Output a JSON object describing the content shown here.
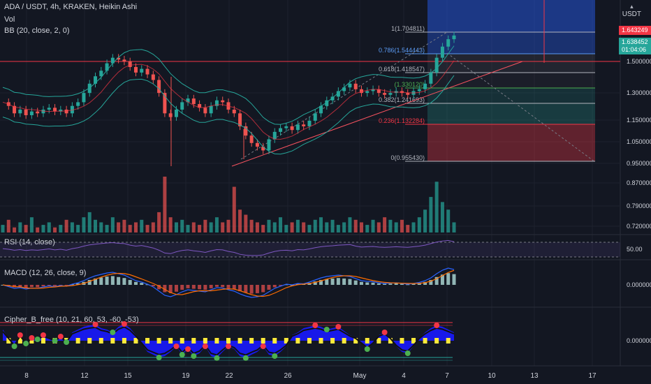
{
  "header": {
    "title": "ADA / USDT, 4h, KRAKEN, Heikin Ashi",
    "vol_label": "Vol",
    "bb_label": "BB (20, close, 2, 0)",
    "rsi_label": "RSI (14, close)",
    "macd_label": "MACD (12, 26, close, 9)",
    "cipher_label": "Cipher_B_free (10, 21, 60, 53, -60, -53)",
    "unit": "USDT"
  },
  "price_boxes": {
    "red_price": "1.643249",
    "green_price": "1.638452",
    "countdown": "01:04:06"
  },
  "colors": {
    "background": "#131722",
    "up": "#26a69a",
    "down": "#ef5350",
    "grid": "#1e222d",
    "axis_text": "#d1d4dc",
    "fib_blue": "#2962ff",
    "cipher_blue": "#1a1aff",
    "cipher_yellow": "#ffeb3b"
  },
  "chart_data": [
    {
      "type": "candlestick",
      "title": "ADA / USDT, 4h, KRAKEN, Heikin Ashi",
      "x_ticks": [
        "8",
        "12",
        "15",
        "19",
        "22",
        "26",
        "May",
        "4",
        "7",
        "10",
        "13",
        "17"
      ],
      "y_ticks": [
        1.5,
        1.3,
        1.15,
        1.05,
        0.95,
        0.87,
        0.79,
        0.72
      ],
      "y_tick_labels": [
        "1.500000",
        "1.300000",
        "1.150000",
        "1.050000",
        "0.950000",
        "0.870000",
        "0.790000",
        "0.720000"
      ],
      "fib_levels": [
        {
          "ratio": "1",
          "value": 1.704811,
          "label": "1(1.704811)",
          "color": "#b2b5be"
        },
        {
          "ratio": "0.786",
          "value": 1.544443,
          "label": "0.786(1.544443)",
          "color": "#5b9cf6"
        },
        {
          "ratio": "0.618",
          "value": 1.418547,
          "label": "0.618(1.418547)",
          "color": "#b2b5be"
        },
        {
          "ratio": "0.5",
          "value": 1.33012,
          "label": "(1.330120)",
          "color": "#4caf50"
        },
        {
          "ratio": "0.382",
          "value": 1.241693,
          "label": "0.382(1.241693)",
          "color": "#b2b5be"
        },
        {
          "ratio": "0.236",
          "value": 1.132284,
          "label": "0.236(1.132284)",
          "color": "#f23645"
        },
        {
          "ratio": "0",
          "value": 0.95543,
          "label": "0(0.955430)",
          "color": "#b2b5be"
        }
      ],
      "horizontal_resistance": 1.5,
      "price_series": [
        1.28,
        1.26,
        1.22,
        1.24,
        1.21,
        1.23,
        1.22,
        1.24,
        1.25,
        1.23,
        1.24,
        1.22,
        1.26,
        1.28,
        1.33,
        1.38,
        1.42,
        1.45,
        1.49,
        1.52,
        1.51,
        1.5,
        1.47,
        1.44,
        1.46,
        1.43,
        1.4,
        1.33,
        1.22,
        1.2,
        1.24,
        1.28,
        1.3,
        1.27,
        1.25,
        1.22,
        1.26,
        1.29,
        1.28,
        1.24,
        1.22,
        1.15,
        1.1,
        1.06,
        1.04,
        1.02,
        1.08,
        1.12,
        1.14,
        1.15,
        1.13,
        1.16,
        1.15,
        1.18,
        1.22,
        1.26,
        1.29,
        1.31,
        1.34,
        1.36,
        1.38,
        1.35,
        1.33,
        1.34,
        1.35,
        1.33,
        1.32,
        1.33,
        1.34,
        1.33,
        1.32,
        1.34,
        1.35,
        1.38,
        1.44,
        1.52,
        1.58,
        1.62,
        1.64
      ]
    },
    {
      "type": "bar",
      "title": "Vol",
      "values": [
        3,
        5,
        2,
        4,
        3,
        6,
        2,
        3,
        4,
        2,
        3,
        5,
        4,
        3,
        6,
        8,
        5,
        4,
        3,
        6,
        4,
        5,
        3,
        4,
        5,
        3,
        4,
        8,
        22,
        6,
        4,
        5,
        3,
        4,
        3,
        5,
        4,
        6,
        4,
        5,
        18,
        9,
        7,
        5,
        4,
        3,
        5,
        4,
        6,
        3,
        4,
        5,
        4,
        3,
        5,
        6,
        4,
        5,
        3,
        4,
        6,
        5,
        4,
        3,
        5,
        4,
        6,
        5,
        4,
        5,
        3,
        4,
        6,
        9,
        14,
        20,
        12,
        9,
        4
      ]
    },
    {
      "type": "line",
      "title": "RSI (14, close)",
      "y_tick_labels": [
        "50.00"
      ],
      "values": [
        52,
        50,
        47,
        49,
        46,
        48,
        47,
        49,
        51,
        48,
        50,
        47,
        52,
        55,
        60,
        64,
        66,
        68,
        70,
        71,
        69,
        68,
        63,
        60,
        62,
        58,
        54,
        47,
        38,
        36,
        42,
        46,
        48,
        45,
        43,
        40,
        45,
        49,
        48,
        43,
        40,
        34,
        31,
        30,
        30,
        32,
        38,
        43,
        46,
        47,
        45,
        49,
        48,
        51,
        55,
        58,
        60,
        61,
        63,
        64,
        65,
        60,
        57,
        58,
        59,
        57,
        56,
        57,
        58,
        57,
        56,
        58,
        60,
        63,
        68,
        73,
        76,
        78,
        74
      ]
    },
    {
      "type": "bar",
      "title": "MACD (12, 26, close, 9)",
      "y_tick_labels": [
        "0.000000"
      ],
      "values": [
        0.0,
        -0.5,
        -1.0,
        -0.8,
        -1.2,
        -0.9,
        -1.0,
        -0.6,
        -0.3,
        -0.5,
        -0.2,
        -0.4,
        0.2,
        0.6,
        1.2,
        2.0,
        2.6,
        3.0,
        3.4,
        3.6,
        3.2,
        2.8,
        2.0,
        1.2,
        0.8,
        0.2,
        -0.6,
        -1.8,
        -3.0,
        -3.4,
        -2.8,
        -2.0,
        -1.4,
        -1.6,
        -1.8,
        -2.0,
        -1.4,
        -0.8,
        -0.9,
        -1.4,
        -1.8,
        -2.6,
        -3.2,
        -3.6,
        -3.4,
        -3.0,
        -2.0,
        -1.0,
        -0.4,
        0.2,
        0.0,
        0.4,
        0.3,
        0.8,
        1.4,
        2.0,
        2.4,
        2.6,
        2.8,
        2.6,
        2.4,
        1.8,
        1.2,
        1.0,
        0.9,
        0.6,
        0.4,
        0.5,
        0.6,
        0.4,
        0.2,
        0.4,
        0.7,
        1.2,
        2.0,
        3.2,
        4.2,
        4.8,
        4.4
      ]
    },
    {
      "type": "area",
      "title": "Cipher_B_free (10, 21, 60, 53, -60, -53)",
      "y_tick_labels": [
        "0.000000"
      ],
      "values": [
        40,
        10,
        -20,
        20,
        -10,
        10,
        5,
        20,
        10,
        0,
        15,
        -5,
        30,
        40,
        50,
        55,
        58,
        45,
        40,
        30,
        50,
        60,
        45,
        20,
        -10,
        -40,
        -50,
        -60,
        -55,
        -40,
        -20,
        -50,
        -30,
        -55,
        -45,
        -20,
        -55,
        -62,
        -40,
        -20,
        -30,
        -55,
        -62,
        -50,
        -40,
        -20,
        -50,
        -55,
        -40,
        -20,
        20,
        30,
        45,
        50,
        55,
        50,
        40,
        45,
        50,
        35,
        20,
        10,
        -10,
        -30,
        -10,
        20,
        30,
        10,
        -20,
        -40,
        -45,
        -20,
        10,
        30,
        45,
        55,
        50,
        40,
        30
      ]
    }
  ]
}
